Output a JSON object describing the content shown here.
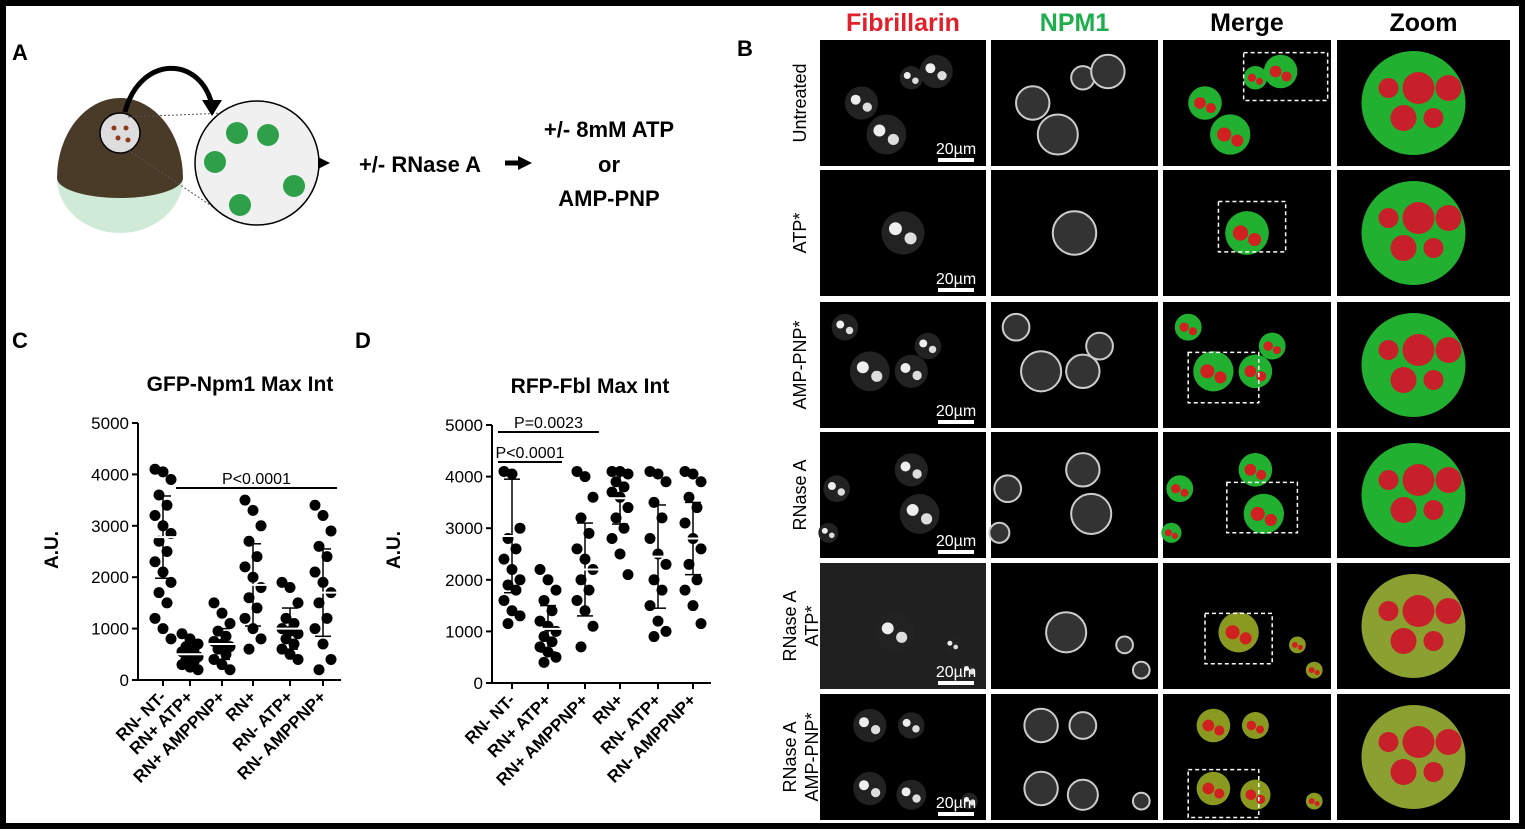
{
  "panel_a": {
    "label": "A",
    "step1": "+/- RNase A",
    "step2_lines": [
      "+/- 8mM ATP",
      "or",
      "AMP-PNP"
    ]
  },
  "panel_b": {
    "label": "B",
    "columns": [
      "Fibrillarin",
      "NPM1",
      "Merge",
      "Zoom"
    ],
    "rows": [
      [
        "Untreated"
      ],
      [
        "ATP*"
      ],
      [
        "AMP-PNP*"
      ],
      [
        "RNase A"
      ],
      [
        "RNase A",
        "ATP*"
      ],
      [
        "RNase A",
        "AMP-PNP*"
      ]
    ],
    "scale_bar": "20µm"
  },
  "chart_data": [
    {
      "type": "strip",
      "panel": "C",
      "title": "GFP-Npm1 Max Int",
      "ylabel": "A.U.",
      "categories": [
        "RN- NT-",
        "RN+ ATP+",
        "RN+ AMPPNP+",
        "RN+",
        "RN- ATP+",
        "RN- AMPPNP+"
      ],
      "values": [
        [
          4100,
          4050,
          3900,
          3600,
          3400,
          3200,
          3000,
          2850,
          2700,
          2500,
          2300,
          2100,
          1900,
          1700,
          1500,
          1200,
          1000,
          800
        ],
        [
          900,
          800,
          700,
          650,
          600,
          550,
          500,
          450,
          400,
          350,
          300,
          250,
          200
        ],
        [
          1500,
          1300,
          1100,
          950,
          850,
          750,
          700,
          650,
          600,
          500,
          400,
          300,
          200
        ],
        [
          3500,
          3300,
          3000,
          2700,
          2400,
          2200,
          2000,
          1800,
          1600,
          1400,
          1200,
          1000,
          800,
          600
        ],
        [
          1900,
          1800,
          1500,
          1200,
          1100,
          1000,
          950,
          900,
          800,
          700,
          600,
          500,
          400
        ],
        [
          3400,
          3200,
          2900,
          2600,
          2400,
          2100,
          1900,
          1700,
          1500,
          1200,
          1000,
          700,
          400,
          200
        ]
      ],
      "means": [
        2780,
        500,
        700,
        1850,
        1000,
        1700
      ],
      "sds": [
        800,
        150,
        300,
        800,
        400,
        850
      ],
      "ylim": [
        0,
        5000
      ],
      "yticks": [
        0,
        1000,
        2000,
        3000,
        4000,
        5000
      ],
      "annotations": [
        {
          "text": "P<0.0001"
        }
      ]
    },
    {
      "type": "strip",
      "panel": "D",
      "title": "RFP-Fbl Max  Int",
      "ylabel": "A.U.",
      "categories": [
        "RN- NT-",
        "RN+ ATP+",
        "RN+ AMPPNP+",
        "RN+",
        "RN- ATP+",
        "RN- AMPPNP+"
      ],
      "values": [
        [
          4100,
          4050,
          3000,
          2800,
          2600,
          2400,
          2200,
          2000,
          1900,
          1800,
          1600,
          1400,
          1300,
          1150
        ],
        [
          2200,
          2000,
          1800,
          1600,
          1400,
          1200,
          1100,
          1000,
          900,
          800,
          700,
          600,
          500,
          400
        ],
        [
          4100,
          4000,
          3600,
          3200,
          2900,
          2600,
          2400,
          2200,
          2000,
          1800,
          1600,
          1400,
          1100,
          700
        ],
        [
          4100,
          4100,
          4050,
          3900,
          3800,
          3700,
          3600,
          3400,
          3200,
          3000,
          2800,
          2500,
          2100
        ],
        [
          4100,
          4050,
          3900,
          3500,
          3200,
          2800,
          2500,
          2300,
          2000,
          1800,
          1500,
          1200,
          1000,
          900
        ],
        [
          4100,
          4050,
          3900,
          3600,
          3400,
          3100,
          2800,
          2600,
          2300,
          2000,
          1800,
          1500,
          1150
        ]
      ],
      "means": [
        2850,
        1050,
        2200,
        3580,
        2450,
        2800
      ],
      "sds": [
        1100,
        450,
        900,
        500,
        1000,
        700
      ],
      "ylim": [
        0,
        5000
      ],
      "yticks": [
        0,
        1000,
        2000,
        3000,
        4000,
        5000
      ],
      "annotations": [
        {
          "text": "P<0.0001"
        },
        {
          "text": "P=0.0023"
        }
      ]
    }
  ]
}
